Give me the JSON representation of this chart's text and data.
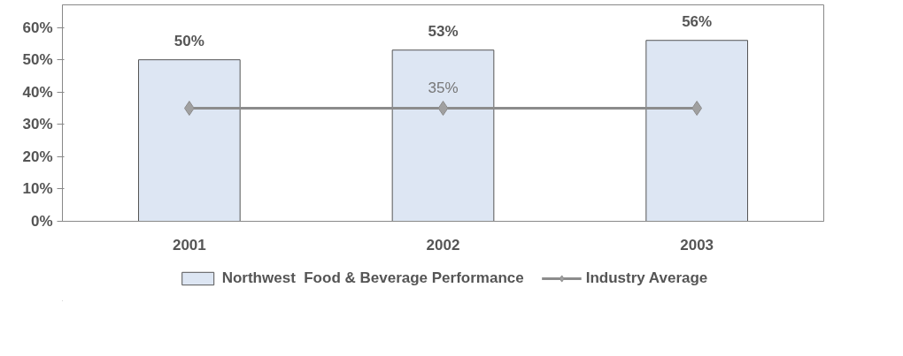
{
  "chart_data": {
    "type": "bar",
    "categories": [
      "2001",
      "2002",
      "2003"
    ],
    "series": [
      {
        "name": "Northwest  Food & Beverage Performance",
        "color": "#dde6f3",
        "values": [
          50,
          53,
          56
        ],
        "value_labels": [
          "50%",
          "53%",
          "56%"
        ]
      },
      {
        "type": "line",
        "name": "Industry Average",
        "color": "#8c8c8c",
        "values": [
          35,
          35,
          35
        ],
        "value_labels": [
          null,
          "35%",
          null
        ],
        "marker": "diamond"
      }
    ],
    "ylim": [
      0,
      67
    ],
    "yticks": [
      {
        "value": 0,
        "label": "0%"
      },
      {
        "value": 10,
        "label": "10%"
      },
      {
        "value": 20,
        "label": "20%"
      },
      {
        "value": 30,
        "label": "30%"
      },
      {
        "value": 40,
        "label": "40%"
      },
      {
        "value": 50,
        "label": "50%"
      },
      {
        "value": 60,
        "label": "60%"
      }
    ],
    "grid": false,
    "legend": "bottom"
  }
}
